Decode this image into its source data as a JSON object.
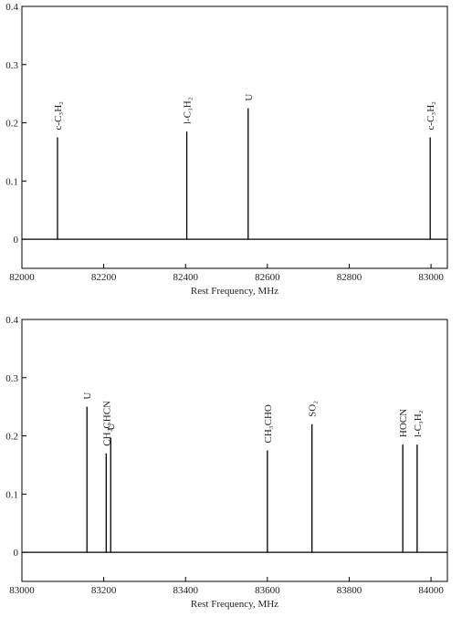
{
  "chart_data": [
    {
      "type": "stick",
      "x_label": "Rest Frequency, MHz",
      "xlim": [
        82000,
        83040
      ],
      "xticks": [
        82000,
        82200,
        82400,
        82600,
        82800,
        83000
      ],
      "ylim": [
        -0.05,
        0.4
      ],
      "yticks": [
        0,
        0.1,
        0.2,
        0.3,
        0.4
      ],
      "color": "#000000",
      "x": [
        82087,
        82403,
        82553,
        82998
      ],
      "values": [
        0.175,
        0.185,
        0.225,
        0.175
      ],
      "labels": [
        "c-C₃H₂",
        "l-C₃H₂",
        "U",
        "c-C₃H₂"
      ]
    },
    {
      "type": "stick",
      "x_label": "Rest Frequency, MHz",
      "xlim": [
        83000,
        84040
      ],
      "xticks": [
        83000,
        83200,
        83400,
        83600,
        83800,
        84000
      ],
      "ylim": [
        -0.05,
        0.4
      ],
      "yticks": [
        0,
        0.1,
        0.2,
        0.3,
        0.4
      ],
      "color": "#000000",
      "x": [
        83159,
        83206,
        83217,
        83600,
        83709,
        83931,
        83966
      ],
      "values": [
        0.25,
        0.17,
        0.197,
        0.175,
        0.22,
        0.185,
        0.185
      ],
      "labels": [
        "U",
        "CH₂CHCN",
        "U",
        "CH₃CHO",
        "SO₂",
        "HOCN",
        "l-C₃H₂"
      ]
    }
  ]
}
